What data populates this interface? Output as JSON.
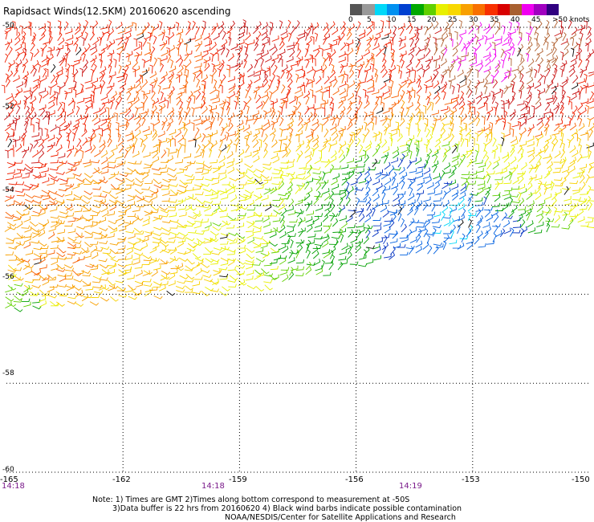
{
  "title": "Rapidsact Winds(12.5KM) 20160620 ascending",
  "legend": {
    "labels": [
      "0",
      "5",
      "10",
      "15",
      "20",
      "25",
      "30",
      "35",
      "40",
      "45",
      ">50 knots"
    ],
    "colors": [
      "#555555",
      "#999999",
      "#00d8f8",
      "#0090f0",
      "#0040d0",
      "#00a800",
      "#60d000",
      "#e8f000",
      "#f8d800",
      "#f8a000",
      "#f87000",
      "#f83000",
      "#d80000",
      "#a86030",
      "#f000f0",
      "#a000c0",
      "#300080"
    ]
  },
  "axes": {
    "lat_labels": [
      "-50",
      "-52",
      "-54",
      "-56",
      "-58",
      "-60"
    ],
    "lon_labels": [
      "-165",
      "-162",
      "-159",
      "-156",
      "-153",
      "-150"
    ],
    "time_labels": [
      "14:18",
      "14:18",
      "14:19"
    ]
  },
  "map_data": {
    "lon_range": [
      -165,
      -150
    ],
    "lat_range": [
      -60,
      -50
    ],
    "swath_lower_edge": [
      [
        -165,
        -56.4
      ],
      [
        -162,
        -56.1
      ],
      [
        -159,
        -55.9
      ],
      [
        -157,
        -55.6
      ],
      [
        -155,
        -55.2
      ],
      [
        -153,
        -55.0
      ],
      [
        -151,
        -54.6
      ],
      [
        -150,
        -54.5
      ]
    ],
    "regions": [
      {
        "center": [
          -163.5,
          -50.9
        ],
        "speed_kt": 36
      },
      {
        "center": [
          -160.5,
          -51.3
        ],
        "speed_kt": 33
      },
      {
        "center": [
          -158.5,
          -50.5
        ],
        "speed_kt": 38
      },
      {
        "center": [
          -156.5,
          -51.5
        ],
        "speed_kt": 34
      },
      {
        "center": [
          -152.5,
          -50.7
        ],
        "speed_kt": 44
      },
      {
        "center": [
          -151.5,
          -51.8
        ],
        "speed_kt": 39
      },
      {
        "center": [
          -164.5,
          -52.6
        ],
        "speed_kt": 37
      },
      {
        "center": [
          -162.0,
          -53.7
        ],
        "speed_kt": 30
      },
      {
        "center": [
          -159.5,
          -54.4
        ],
        "speed_kt": 23
      },
      {
        "center": [
          -157.0,
          -54.8
        ],
        "speed_kt": 19
      },
      {
        "center": [
          -155.0,
          -53.9
        ],
        "speed_kt": 14
      },
      {
        "center": [
          -153.5,
          -54.3
        ],
        "speed_kt": 10
      },
      {
        "center": [
          -152.5,
          -53.4
        ],
        "speed_kt": 22
      },
      {
        "center": [
          -151.0,
          -53.0
        ],
        "speed_kt": 26
      },
      {
        "center": [
          -164.0,
          -55.4
        ],
        "speed_kt": 31
      },
      {
        "center": [
          -161.0,
          -55.5
        ],
        "speed_kt": 27
      },
      {
        "center": [
          -165.0,
          -56.2
        ],
        "speed_kt": 20
      }
    ]
  },
  "notes": {
    "line1": "Note: 1) Times are GMT 2)Times along bottom correspond to measurement at -50S",
    "line2": "3)Data buffer is 22 hrs from 20160620 4) Black wind barbs indicate possible contamination",
    "line3": "NOAA/NESDIS/Center for Satellite Applications and Research"
  }
}
